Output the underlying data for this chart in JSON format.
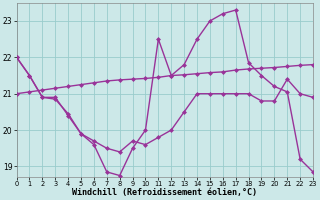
{
  "xlabel": "Windchill (Refroidissement éolien,°C)",
  "bg_color": "#cce8e8",
  "line_color": "#993399",
  "grid_color": "#99cccc",
  "xlim": [
    0,
    23
  ],
  "ylim": [
    18.7,
    23.5
  ],
  "yticks": [
    19,
    20,
    21,
    22,
    23
  ],
  "xticks": [
    0,
    1,
    2,
    3,
    4,
    5,
    6,
    7,
    8,
    9,
    10,
    11,
    12,
    13,
    14,
    15,
    16,
    17,
    18,
    19,
    20,
    21,
    22,
    23
  ],
  "line1_x": [
    0,
    1,
    2,
    3,
    4,
    5,
    6,
    7,
    8,
    9,
    10,
    11,
    12,
    13,
    14,
    15,
    16,
    17,
    18,
    19,
    20,
    21,
    22,
    23
  ],
  "line1_y": [
    22.0,
    21.5,
    20.9,
    20.9,
    20.4,
    19.9,
    19.6,
    18.85,
    18.75,
    19.5,
    20.0,
    22.5,
    21.5,
    21.8,
    22.5,
    23.0,
    23.2,
    23.3,
    21.85,
    21.5,
    21.2,
    21.05,
    19.2,
    18.85
  ],
  "line2_x": [
    0,
    1,
    2,
    3,
    4,
    5,
    6,
    7,
    8,
    9,
    10,
    11,
    12,
    13,
    14,
    15,
    16,
    17,
    18,
    19,
    20,
    21,
    22,
    23
  ],
  "line2_y": [
    21.0,
    21.05,
    21.1,
    21.15,
    21.2,
    21.25,
    21.3,
    21.35,
    21.38,
    21.4,
    21.42,
    21.45,
    21.5,
    21.52,
    21.55,
    21.58,
    21.6,
    21.65,
    21.68,
    21.7,
    21.72,
    21.75,
    21.78,
    21.8
  ],
  "line3_x": [
    0,
    1,
    2,
    3,
    4,
    5,
    6,
    7,
    8,
    9,
    10,
    11,
    12,
    13,
    14,
    15,
    16,
    17,
    18,
    19,
    20,
    21,
    22,
    23
  ],
  "line3_y": [
    22.0,
    21.5,
    20.9,
    20.85,
    20.45,
    19.9,
    19.7,
    19.5,
    19.4,
    19.7,
    19.6,
    19.8,
    20.0,
    20.5,
    21.0,
    21.0,
    21.0,
    21.0,
    21.0,
    20.8,
    20.8,
    21.4,
    21.0,
    20.9
  ]
}
